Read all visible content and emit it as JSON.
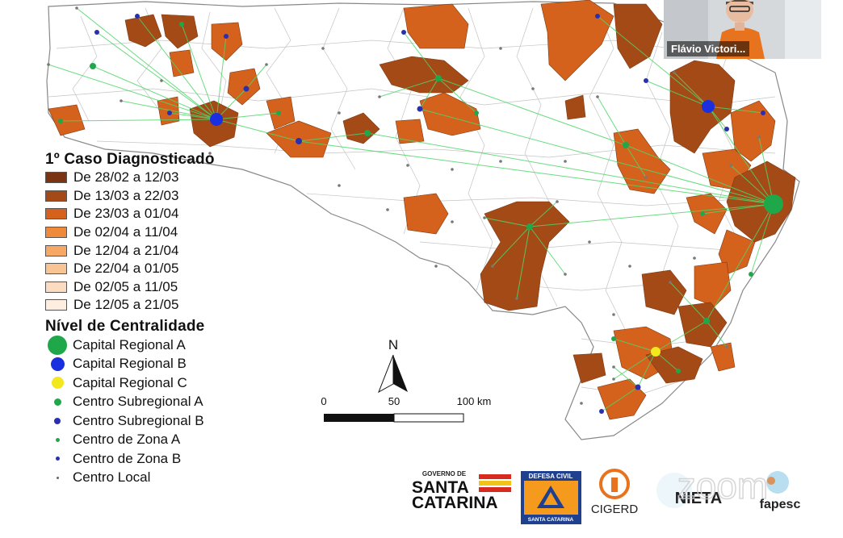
{
  "legend": {
    "case_title": "1º Caso Diagnosticado",
    "case_classes": [
      {
        "label": "De 28/02 a 12/03",
        "color": "#7b3413"
      },
      {
        "label": "De 13/03 a 22/03",
        "color": "#a44a16"
      },
      {
        "label": "De 23/03 a 01/04",
        "color": "#d4621c"
      },
      {
        "label": "De 02/04 a 11/04",
        "color": "#ee8a3a"
      },
      {
        "label": "De 12/04 a 21/04",
        "color": "#f6a864"
      },
      {
        "label": "De 22/04 a 01/05",
        "color": "#f8c493"
      },
      {
        "label": "De 02/05 a 11/05",
        "color": "#fbdcc0"
      },
      {
        "label": "De 12/05 a 21/05",
        "color": "#fdeee0"
      }
    ],
    "centrality_title": "Nível de Centralidade",
    "centrality_classes": [
      {
        "label": "Capital Regional A",
        "color": "#1fa84a",
        "symbol": "large-circle"
      },
      {
        "label": "Capital Regional B",
        "color": "#1a2fe0",
        "symbol": "medium-circle"
      },
      {
        "label": "Capital Regional C",
        "color": "#f2e81d",
        "symbol": "medium-circle"
      },
      {
        "label": "Centro Subregional A",
        "color": "#1fa84a",
        "symbol": "small-circle"
      },
      {
        "label": "Centro Subregional B",
        "color": "#2a2fb0",
        "symbol": "small-circle"
      },
      {
        "label": "Centro de Zona A",
        "color": "#1fa84a",
        "symbol": "tiny-circle"
      },
      {
        "label": "Centro de Zona B",
        "color": "#2a2fb0",
        "symbol": "tiny-circle"
      },
      {
        "label": "Centro Local",
        "color": "#666666",
        "symbol": "dot"
      }
    ]
  },
  "north_arrow": {
    "label": "N"
  },
  "scale_bar": {
    "tick_0": "0",
    "tick_1": "50",
    "tick_2": "100 km"
  },
  "video": {
    "participant_name": "Flávio Victori..."
  },
  "logos": {
    "sc_top": "GOVERNO DE",
    "sc_line1": "SANTA",
    "sc_line2": "CATARINA",
    "defesa_top": "DEFESA CIVIL",
    "defesa_bottom": "SANTA CATARINA",
    "cigerd": "CIGERD",
    "nieta": "NIETA",
    "fapesc": "fapesc",
    "watermark": "zoom"
  },
  "colors": {
    "link_line": "#4fd66a",
    "border": "#b8b8b8"
  }
}
